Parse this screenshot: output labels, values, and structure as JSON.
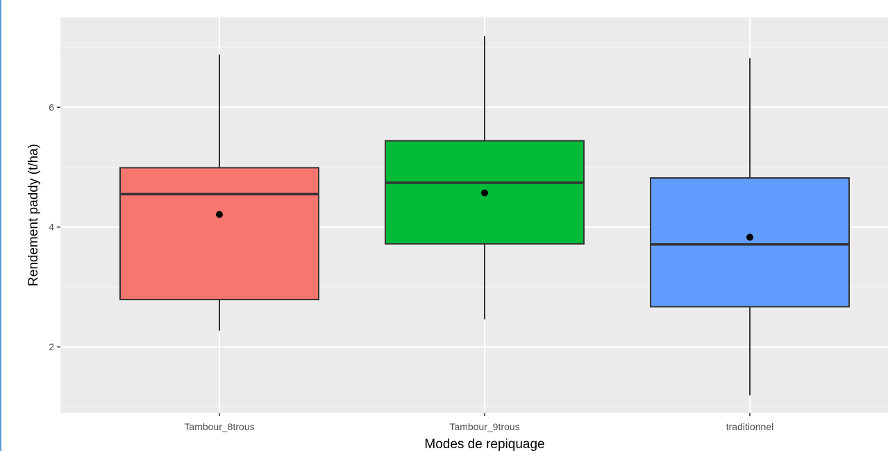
{
  "chart_data": {
    "type": "boxplot",
    "xlabel": "Modes de repiquage",
    "ylabel": "Rendement paddy (t/ha)",
    "ylim": [
      0.9,
      7.5
    ],
    "y_ticks": [
      2,
      4,
      6
    ],
    "grid": true,
    "legend": "none",
    "categories": [
      "Tambour_8trous",
      "Tambour_9trous",
      "traditionnel"
    ],
    "boxes": [
      {
        "category": "Tambour_8trous",
        "color": "#F8766D",
        "whisker_low": 2.27,
        "q1": 2.79,
        "median": 4.55,
        "q3": 4.99,
        "whisker_high": 6.88,
        "mean": 4.21
      },
      {
        "category": "Tambour_9trous",
        "color": "#00BA38",
        "whisker_low": 2.46,
        "q1": 3.72,
        "median": 4.74,
        "q3": 5.44,
        "whisker_high": 7.19,
        "mean": 4.57
      },
      {
        "category": "traditionnel",
        "color": "#619CFF",
        "whisker_low": 1.19,
        "q1": 2.67,
        "median": 3.71,
        "q3": 4.82,
        "whisker_high": 6.82,
        "mean": 3.83
      }
    ],
    "panel_background": "#EBEBEB"
  }
}
